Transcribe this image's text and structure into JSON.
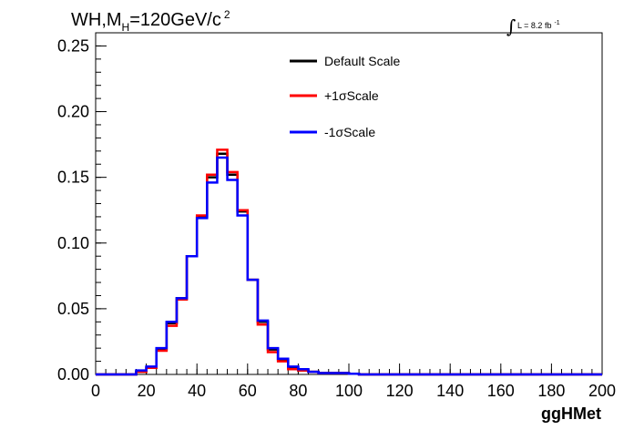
{
  "chart_data": {
    "type": "line",
    "title": {
      "main": "WH,M",
      "sub": "H",
      "mass": "=120GeV/c",
      "sup": "2"
    },
    "lumi": {
      "integral": "∫",
      "text": "L = 8.2 fb",
      "sup": "-1"
    },
    "xlabel": "ggHMet",
    "ylabel": "",
    "xlim": [
      0,
      200
    ],
    "ylim": [
      0,
      0.26
    ],
    "xticks": [
      "0",
      "20",
      "40",
      "60",
      "80",
      "100",
      "120",
      "140",
      "160",
      "180",
      "200"
    ],
    "yticks": [
      "0.00",
      "0.05",
      "0.10",
      "0.15",
      "0.20",
      "0.25"
    ],
    "bin_width": 4,
    "bin_edges_start": 0,
    "grid": false,
    "legend_position": "top-center",
    "series": [
      {
        "name": "Default Scale",
        "color": "#000000",
        "values": [
          0,
          0,
          0,
          0,
          0.002,
          0.005,
          0.019,
          0.039,
          0.058,
          0.09,
          0.12,
          0.15,
          0.168,
          0.152,
          0.124,
          0.072,
          0.04,
          0.019,
          0.011,
          0.005,
          0.003,
          0.002,
          0.001,
          0.001,
          0.001,
          0.0005,
          0,
          0,
          0,
          0,
          0,
          0,
          0,
          0,
          0,
          0,
          0,
          0,
          0,
          0,
          0,
          0,
          0,
          0,
          0,
          0,
          0,
          0,
          0,
          0
        ]
      },
      {
        "name": "+1σScale",
        "color": "#ff0000",
        "values": [
          0,
          0,
          0,
          0,
          0.002,
          0.005,
          0.018,
          0.037,
          0.057,
          0.09,
          0.121,
          0.152,
          0.171,
          0.154,
          0.125,
          0.072,
          0.038,
          0.017,
          0.01,
          0.004,
          0.003,
          0.002,
          0.001,
          0.001,
          0.001,
          0.0005,
          0,
          0,
          0,
          0,
          0,
          0,
          0,
          0,
          0,
          0,
          0,
          0,
          0,
          0,
          0,
          0,
          0,
          0,
          0,
          0,
          0,
          0,
          0,
          0
        ]
      },
      {
        "name": "-1σScale",
        "color": "#0000ff",
        "values": [
          0,
          0,
          0,
          0,
          0.003,
          0.006,
          0.02,
          0.04,
          0.058,
          0.09,
          0.119,
          0.146,
          0.165,
          0.148,
          0.121,
          0.072,
          0.041,
          0.02,
          0.012,
          0.006,
          0.004,
          0.002,
          0.001,
          0.001,
          0.001,
          0.0005,
          0,
          0,
          0,
          0,
          0,
          0,
          0,
          0,
          0,
          0,
          0,
          0,
          0,
          0,
          0,
          0,
          0,
          0,
          0,
          0,
          0,
          0,
          0,
          0
        ]
      }
    ]
  }
}
